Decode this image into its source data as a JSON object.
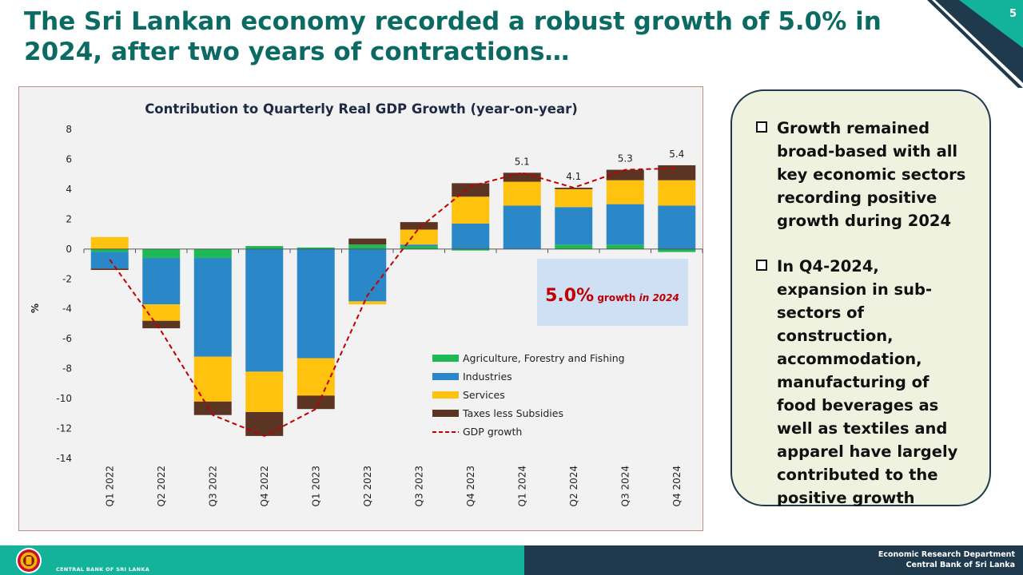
{
  "slide": {
    "title": "The Sri Lankan economy recorded a robust growth of 5.0% in 2024, after two years of contractions…",
    "page_number": "5"
  },
  "chart_data": {
    "type": "bar",
    "stacked": true,
    "title": "Contribution to Quarterly Real GDP Growth (year-on-year)",
    "ylabel": "%",
    "ylim": [
      -14,
      8
    ],
    "yticks": [
      8,
      6,
      4,
      2,
      0,
      -2,
      -4,
      -6,
      -8,
      -10,
      -12,
      -14
    ],
    "categories": [
      "Q1 2022",
      "Q2 2022",
      "Q3 2022",
      "Q4 2022",
      "Q1 2023",
      "Q2 2023",
      "Q3 2023",
      "Q4 2023",
      "Q1 2024",
      "Q2 2024",
      "Q3 2024",
      "Q4 2024"
    ],
    "series": [
      {
        "name": "Agriculture, Forestry and Fishing",
        "color": "#1db954",
        "values": [
          -0.2,
          -0.6,
          -0.6,
          0.2,
          0.1,
          0.3,
          0.2,
          -0.1,
          0.0,
          0.3,
          0.3,
          -0.2
        ]
      },
      {
        "name": "Industries",
        "color": "#2a87c8",
        "values": [
          -1.1,
          -3.1,
          -6.6,
          -8.2,
          -7.3,
          -3.5,
          0.1,
          1.7,
          2.9,
          2.5,
          2.7,
          2.9
        ]
      },
      {
        "name": "Services",
        "color": "#ffc20e",
        "values": [
          0.8,
          -1.1,
          -3.0,
          -2.7,
          -2.5,
          -0.2,
          1.0,
          1.8,
          1.6,
          1.2,
          1.6,
          1.7
        ]
      },
      {
        "name": "Taxes less Subsidies",
        "color": "#5c3424",
        "values": [
          -0.1,
          -0.5,
          -0.9,
          -1.6,
          -0.9,
          0.4,
          0.5,
          0.9,
          0.6,
          0.1,
          0.7,
          1.0
        ]
      }
    ],
    "line": {
      "name": "GDP growth",
      "color": "#c00000",
      "values": [
        -0.7,
        -5.5,
        -11.1,
        -12.5,
        -10.7,
        -3.1,
        1.4,
        4.2,
        5.1,
        4.1,
        5.3,
        5.4
      ]
    },
    "data_labels": [
      {
        "category": "Q1 2024",
        "text": "5.1",
        "value": 5.1
      },
      {
        "category": "Q2 2024",
        "text": "4.1",
        "value": 4.1
      },
      {
        "category": "Q3 2024",
        "text": "5.3",
        "value": 5.3
      },
      {
        "category": "Q4 2024",
        "text": "5.4",
        "value": 5.4
      }
    ],
    "legend_placement": "bottom-right",
    "callout": {
      "value": "5.0%",
      "text": "growth",
      "suffix": "in 2024",
      "bg": "#cfe0f5",
      "color": "#c00000"
    }
  },
  "notes": [
    "Growth remained broad-based with all key economic sectors recording positive growth during 2024",
    "In Q4-2024, expansion in sub-sectors of construction, accommodation, manufacturing of food beverages as well as textiles and apparel have largely contributed to the positive growth"
  ],
  "footer": {
    "department": "Economic Research Department",
    "bank": "Central Bank of Sri Lanka",
    "bank_name_en": "CENTRAL BANK OF SRI LANKA"
  },
  "colors": {
    "title": "#0b6b63",
    "footer_left": "#12b39a",
    "footer_right": "#1f3a4d"
  }
}
